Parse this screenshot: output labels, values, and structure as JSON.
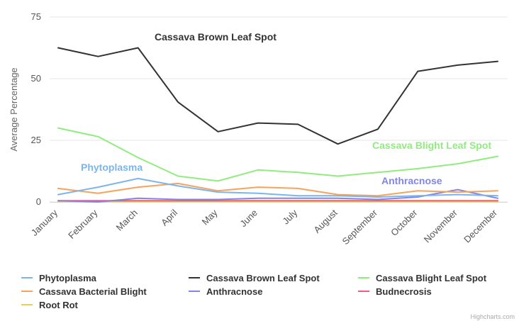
{
  "chart_data": {
    "type": "line",
    "title": "",
    "ylabel": "Average Percentage",
    "xlabel": "",
    "ylim": [
      0,
      75
    ],
    "yticks": [
      0,
      25,
      50,
      75
    ],
    "grid": true,
    "legend_position": "bottom",
    "categories": [
      "January",
      "February",
      "March",
      "April",
      "May",
      "June",
      "July",
      "August",
      "September",
      "October",
      "November",
      "December"
    ],
    "series": [
      {
        "name": "Phytoplasma",
        "color": "#7cb5ec",
        "values": [
          3,
          6,
          9.5,
          6.5,
          4,
          3.5,
          2.5,
          2.5,
          2,
          2.5,
          3,
          2.5
        ]
      },
      {
        "name": "Cassava Brown Leaf Spot",
        "color": "#333333",
        "values": [
          62.5,
          59,
          62.5,
          40.5,
          28.5,
          32,
          31.5,
          23.5,
          29.5,
          53,
          55.5,
          57
        ]
      },
      {
        "name": "Cassava Blight Leaf Spot",
        "color": "#90ed7d",
        "values": [
          30,
          26.5,
          18,
          10.5,
          8.5,
          13,
          12,
          10.5,
          12,
          13.5,
          15.5,
          18.5
        ]
      },
      {
        "name": "Cassava Bacterial Blight",
        "color": "#f7a35c",
        "values": [
          5.5,
          3.5,
          6,
          7.5,
          4.5,
          6,
          5.5,
          3,
          2.5,
          4.5,
          4,
          4.5
        ]
      },
      {
        "name": "Anthracnose",
        "color": "#8085e9",
        "values": [
          0.5,
          0,
          1.5,
          1,
          1,
          1.5,
          1.5,
          1.5,
          1,
          2,
          5,
          1.5
        ]
      },
      {
        "name": "Budnecrosis",
        "color": "#f15c80",
        "values": [
          0.5,
          0.5,
          0.5,
          0.5,
          0.5,
          0.5,
          0.5,
          0.5,
          0.5,
          0.5,
          0.5,
          0.5
        ]
      },
      {
        "name": "Root Rot",
        "color": "#e4d354",
        "values": [
          0.2,
          0.2,
          0.2,
          0.2,
          0.2,
          0.2,
          0.2,
          0.2,
          0.2,
          0.2,
          0.2,
          0.2
        ]
      }
    ],
    "annotations": [
      {
        "text": "Cassava Brown Leaf Spot",
        "series": "Cassava Brown Leaf Spot",
        "color": "#333333"
      },
      {
        "text": "Cassava Blight Leaf Spot",
        "series": "Cassava Blight Leaf Spot",
        "color": "#90ed7d"
      },
      {
        "text": "Phytoplasma",
        "series": "Phytoplasma",
        "color": "#7cb5ec"
      },
      {
        "text": "Anthracnose",
        "series": "Anthracnose",
        "color": "#8085e9"
      }
    ],
    "credit": "Highcharts.com"
  }
}
